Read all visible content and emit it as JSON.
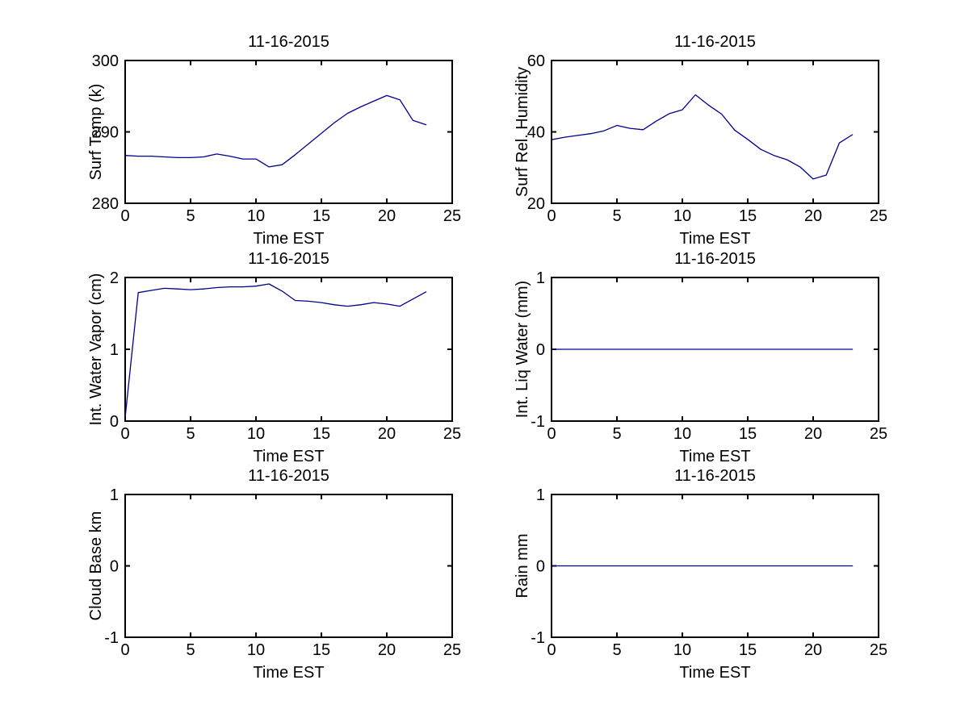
{
  "figure": {
    "background": "#ffffff",
    "axis_color": "#000000",
    "line_color": "#00008B",
    "date": "11-16-2015"
  },
  "chart_data": [
    {
      "id": "surf-temp",
      "type": "line",
      "title": "11-16-2015",
      "xlabel": "Time EST",
      "ylabel": "Surf Temp (k)",
      "xlim": [
        0,
        25
      ],
      "ylim": [
        280,
        300
      ],
      "xticks": [
        0,
        5,
        10,
        15,
        20,
        25
      ],
      "yticks": [
        280,
        290,
        300
      ],
      "grid": false,
      "legend": null,
      "x": [
        0,
        1,
        2,
        3,
        4,
        5,
        6,
        7,
        8,
        9,
        10,
        11,
        12,
        13,
        14,
        15,
        16,
        17,
        18,
        19,
        20,
        21,
        22,
        23
      ],
      "y": [
        286.7,
        286.6,
        286.6,
        286.5,
        286.4,
        286.4,
        286.5,
        286.9,
        286.6,
        286.2,
        286.2,
        285.1,
        285.4,
        286.8,
        288.3,
        289.8,
        291.3,
        292.6,
        293.5,
        294.3,
        295.1,
        294.5,
        291.6,
        291.0
      ]
    },
    {
      "id": "surf-rel-humidity",
      "type": "line",
      "title": "11-16-2015",
      "xlabel": "Time EST",
      "ylabel": "Surf Rel. Humidity",
      "xlim": [
        0,
        25
      ],
      "ylim": [
        20,
        60
      ],
      "xticks": [
        0,
        5,
        10,
        15,
        20,
        25
      ],
      "yticks": [
        20,
        40,
        60
      ],
      "grid": false,
      "legend": null,
      "x": [
        0,
        1,
        2,
        3,
        4,
        5,
        6,
        7,
        8,
        9,
        10,
        11,
        12,
        13,
        14,
        15,
        16,
        17,
        18,
        19,
        20,
        21,
        22,
        23
      ],
      "y": [
        37.8,
        38.5,
        39.0,
        39.5,
        40.3,
        41.8,
        41.0,
        40.6,
        43.0,
        45.1,
        46.2,
        50.4,
        47.5,
        45.0,
        40.5,
        37.9,
        35.1,
        33.4,
        32.2,
        30.2,
        26.8,
        27.9,
        36.9,
        39.2
      ]
    },
    {
      "id": "int-water-vapor",
      "type": "line",
      "title": "11-16-2015",
      "xlabel": "Time EST",
      "ylabel": "Int. Water Vapor (cm)",
      "xlim": [
        0,
        25
      ],
      "ylim": [
        0,
        2
      ],
      "xticks": [
        0,
        5,
        10,
        15,
        20,
        25
      ],
      "yticks": [
        0,
        1,
        2
      ],
      "grid": false,
      "legend": null,
      "x": [
        0,
        1,
        2,
        3,
        4,
        5,
        6,
        7,
        8,
        9,
        10,
        11,
        12,
        13,
        14,
        15,
        16,
        17,
        18,
        19,
        20,
        21,
        22,
        23
      ],
      "y": [
        0.05,
        1.79,
        1.82,
        1.85,
        1.84,
        1.83,
        1.84,
        1.86,
        1.87,
        1.87,
        1.88,
        1.91,
        1.81,
        1.68,
        1.67,
        1.65,
        1.62,
        1.6,
        1.62,
        1.65,
        1.63,
        1.6,
        1.7,
        1.8
      ]
    },
    {
      "id": "int-liq-water",
      "type": "line",
      "title": "11-16-2015",
      "xlabel": "Time EST",
      "ylabel": "Int. Liq Water (mm)",
      "xlim": [
        0,
        25
      ],
      "ylim": [
        -1,
        1
      ],
      "xticks": [
        0,
        5,
        10,
        15,
        20,
        25
      ],
      "yticks": [
        -1,
        0,
        1
      ],
      "grid": false,
      "legend": null,
      "x": [
        0,
        1,
        2,
        3,
        4,
        5,
        6,
        7,
        8,
        9,
        10,
        11,
        12,
        13,
        14,
        15,
        16,
        17,
        18,
        19,
        20,
        21,
        22,
        23
      ],
      "y": [
        0,
        0,
        0,
        0,
        0,
        0,
        0,
        0,
        0,
        0,
        0,
        0,
        0,
        0,
        0,
        0,
        0,
        0,
        0,
        0,
        0,
        0,
        0,
        0
      ]
    },
    {
      "id": "cloud-base",
      "type": "line",
      "title": "11-16-2015",
      "xlabel": "Time EST",
      "ylabel": "Cloud Base km",
      "xlim": [
        0,
        25
      ],
      "ylim": [
        -1,
        1
      ],
      "xticks": [
        0,
        5,
        10,
        15,
        20,
        25
      ],
      "yticks": [
        -1,
        0,
        1
      ],
      "grid": false,
      "legend": null,
      "x": [],
      "y": []
    },
    {
      "id": "rain",
      "type": "line",
      "title": "11-16-2015",
      "xlabel": "Time EST",
      "ylabel": "Rain mm",
      "xlim": [
        0,
        25
      ],
      "ylim": [
        -1,
        1
      ],
      "xticks": [
        0,
        5,
        10,
        15,
        20,
        25
      ],
      "yticks": [
        -1,
        0,
        1
      ],
      "grid": false,
      "legend": null,
      "x": [
        0,
        1,
        2,
        3,
        4,
        5,
        6,
        7,
        8,
        9,
        10,
        11,
        12,
        13,
        14,
        15,
        16,
        17,
        18,
        19,
        20,
        21,
        22,
        23
      ],
      "y": [
        0,
        0,
        0,
        0,
        0,
        0,
        0,
        0,
        0,
        0,
        0,
        0,
        0,
        0,
        0,
        0,
        0,
        0,
        0,
        0,
        0,
        0,
        0,
        0
      ]
    }
  ]
}
